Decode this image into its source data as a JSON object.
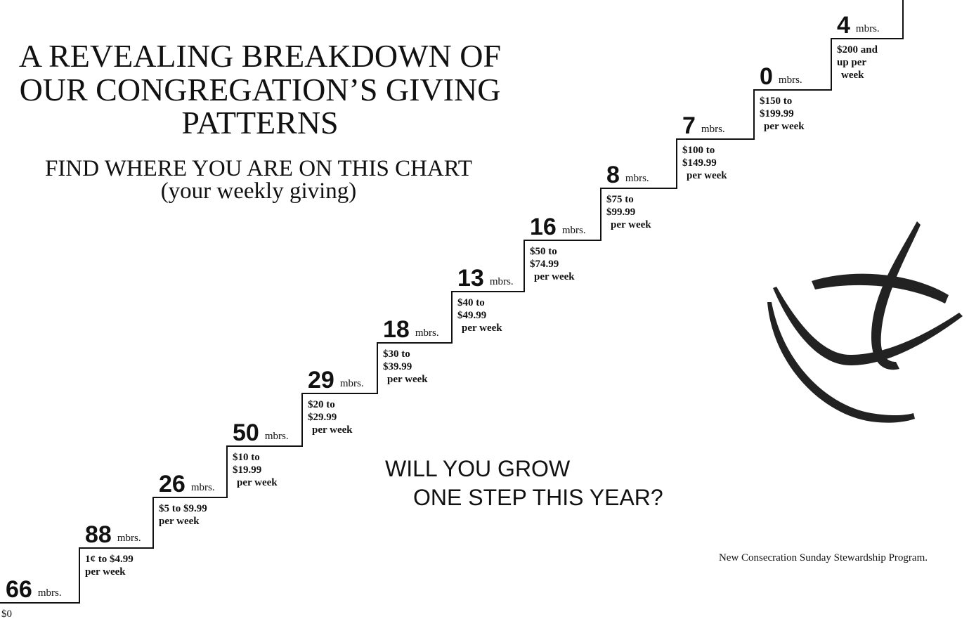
{
  "header": {
    "title": [
      "A REVEALING BREAKDOWN OF",
      "OUR CONGREGATION’S GIVING",
      "PATTERNS"
    ],
    "subtitle": [
      "FIND WHERE YOU ARE ON THIS CHART",
      "(your weekly giving)"
    ]
  },
  "steps": [
    {
      "count": "66",
      "unit": "mbrs.",
      "range": [
        "$0"
      ]
    },
    {
      "count": "88",
      "unit": "mbrs.",
      "range": [
        "1¢ to $4.99",
        "per week"
      ]
    },
    {
      "count": "26",
      "unit": "mbrs.",
      "range": [
        "$5 to $9.99",
        "per week"
      ]
    },
    {
      "count": "50",
      "unit": "mbrs.",
      "range": [
        "$10 to",
        "$19.99",
        "per week"
      ]
    },
    {
      "count": "29",
      "unit": "mbrs.",
      "range": [
        "$20 to",
        "$29.99",
        "per week"
      ]
    },
    {
      "count": "18",
      "unit": "mbrs.",
      "range": [
        "$30 to",
        "$39.99",
        "per week"
      ]
    },
    {
      "count": "13",
      "unit": "mbrs.",
      "range": [
        "$40 to",
        "$49.99",
        "per week"
      ]
    },
    {
      "count": "16",
      "unit": "mbrs.",
      "range": [
        "$50 to",
        "$74.99",
        "per week"
      ]
    },
    {
      "count": "8",
      "unit": "mbrs.",
      "range": [
        "$75 to",
        "$99.99",
        "per week"
      ]
    },
    {
      "count": "7",
      "unit": "mbrs.",
      "range": [
        "$100 to",
        "$149.99",
        "per week"
      ]
    },
    {
      "count": "0",
      "unit": "mbrs.",
      "range": [
        "$150 to",
        "$199.99",
        "per week"
      ]
    },
    {
      "count": "4",
      "unit": "mbrs.",
      "range": [
        "$200 and",
        "up per",
        "week"
      ]
    }
  ],
  "slogan": [
    "WILL YOU GROW",
    "ONE STEP THIS YEAR?"
  ],
  "footer": "New Consecration Sunday Stewardship Program."
}
